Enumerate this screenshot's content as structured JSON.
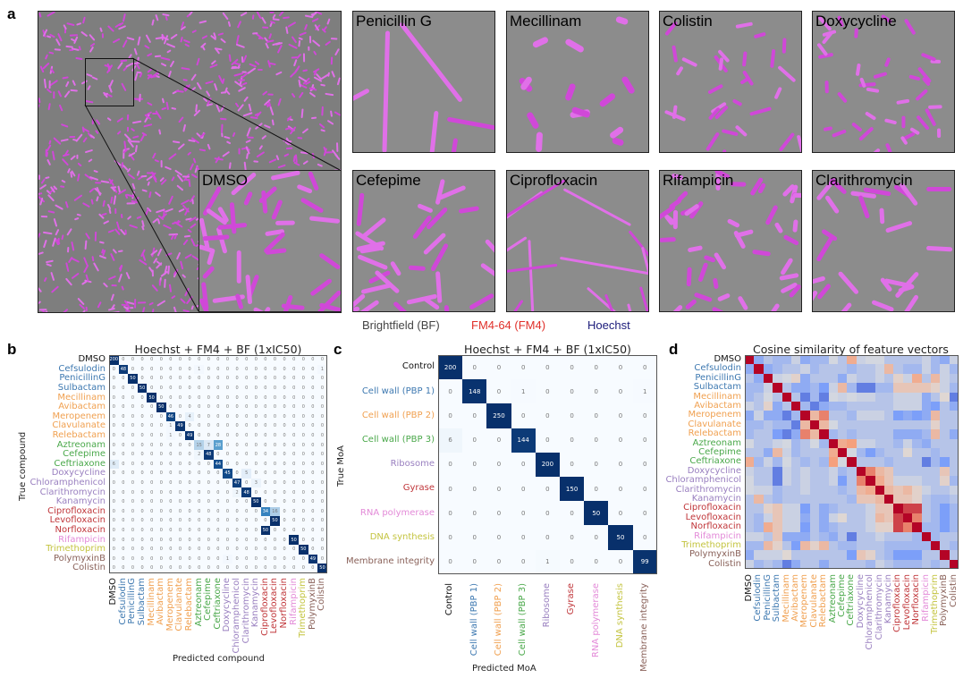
{
  "panel_a": {
    "letter": "a",
    "inset_label": "DMSO",
    "tiles": [
      "Penicillin G",
      "Mecillinam",
      "Colistin",
      "Doxycycline",
      "Cefepime",
      "Ciprofloxacin",
      "Rifampicin",
      "Clarithromycin"
    ],
    "legend": [
      {
        "label": "Brightfield (BF)",
        "color": "#444444"
      },
      {
        "label": "FM4-64 (FM4)",
        "color": "#e0302a"
      },
      {
        "label": "Hoechst",
        "color": "#1a1a7a"
      }
    ]
  },
  "compounds": [
    {
      "name": "DMSO",
      "color": "#111111"
    },
    {
      "name": "Cefsulodin",
      "color": "#3d78b0"
    },
    {
      "name": "PenicillinG",
      "color": "#3d78b0"
    },
    {
      "name": "Sulbactam",
      "color": "#3d78b0"
    },
    {
      "name": "Mecillinam",
      "color": "#f0a050"
    },
    {
      "name": "Avibactam",
      "color": "#f0a050"
    },
    {
      "name": "Meropenem",
      "color": "#f0a050"
    },
    {
      "name": "Clavulanate",
      "color": "#f0a050"
    },
    {
      "name": "Relebactam",
      "color": "#f0a050"
    },
    {
      "name": "Aztreonam",
      "color": "#4aa84a"
    },
    {
      "name": "Cefepime",
      "color": "#4aa84a"
    },
    {
      "name": "Ceftriaxone",
      "color": "#4aa84a"
    },
    {
      "name": "Doxycycline",
      "color": "#9a80c0"
    },
    {
      "name": "Chloramphenicol",
      "color": "#9a80c0"
    },
    {
      "name": "Clarithromycin",
      "color": "#9a80c0"
    },
    {
      "name": "Kanamycin",
      "color": "#9a80c0"
    },
    {
      "name": "Ciprofloxacin",
      "color": "#c0363a"
    },
    {
      "name": "Levofloxacin",
      "color": "#c0363a"
    },
    {
      "name": "Norfloxacin",
      "color": "#c0363a"
    },
    {
      "name": "Rifampicin",
      "color": "#e38ad8"
    },
    {
      "name": "Trimethoprim",
      "color": "#c4c440"
    },
    {
      "name": "PolymyxinB",
      "color": "#8a625a"
    },
    {
      "name": "Colistin",
      "color": "#8a625a"
    }
  ],
  "chart_data": [
    {
      "panel": "b",
      "type": "heatmap",
      "title": "Hoechst + FM4 + BF (1xIC50)",
      "xlabel": "Predicted compound",
      "ylabel": "True compound",
      "colormap": "Blues",
      "matrix": [
        [
          200,
          0,
          0,
          0,
          0,
          0,
          0,
          0,
          0,
          0,
          0,
          0,
          0,
          0,
          0,
          0,
          0,
          0,
          0,
          0,
          0,
          0,
          0
        ],
        [
          0,
          48,
          0,
          0,
          0,
          0,
          0,
          0,
          0,
          1,
          0,
          0,
          0,
          0,
          0,
          0,
          0,
          0,
          0,
          0,
          0,
          0,
          1
        ],
        [
          0,
          0,
          50,
          0,
          0,
          0,
          0,
          0,
          0,
          0,
          0,
          0,
          0,
          0,
          0,
          0,
          0,
          0,
          0,
          0,
          0,
          0,
          0
        ],
        [
          0,
          0,
          0,
          50,
          0,
          0,
          0,
          0,
          0,
          0,
          0,
          0,
          0,
          0,
          0,
          0,
          0,
          0,
          0,
          0,
          0,
          0,
          0
        ],
        [
          0,
          0,
          0,
          0,
          50,
          0,
          0,
          0,
          0,
          0,
          0,
          0,
          0,
          0,
          0,
          0,
          0,
          0,
          0,
          0,
          0,
          0,
          0
        ],
        [
          0,
          0,
          0,
          0,
          0,
          50,
          0,
          0,
          0,
          0,
          0,
          0,
          0,
          0,
          0,
          0,
          0,
          0,
          0,
          0,
          0,
          0,
          0
        ],
        [
          0,
          0,
          0,
          0,
          0,
          0,
          46,
          0,
          4,
          0,
          0,
          0,
          0,
          0,
          0,
          0,
          0,
          0,
          0,
          0,
          0,
          0,
          0
        ],
        [
          0,
          0,
          0,
          0,
          0,
          0,
          1,
          49,
          0,
          0,
          0,
          0,
          0,
          0,
          0,
          0,
          0,
          0,
          0,
          0,
          0,
          0,
          0
        ],
        [
          0,
          0,
          0,
          0,
          0,
          0,
          1,
          0,
          49,
          0,
          0,
          0,
          0,
          0,
          0,
          0,
          0,
          0,
          0,
          0,
          0,
          0,
          0
        ],
        [
          0,
          0,
          0,
          0,
          0,
          0,
          0,
          0,
          0,
          15,
          7,
          28,
          0,
          0,
          0,
          0,
          0,
          0,
          0,
          0,
          0,
          0,
          0
        ],
        [
          0,
          0,
          0,
          0,
          0,
          0,
          0,
          0,
          0,
          2,
          48,
          0,
          0,
          0,
          0,
          0,
          0,
          0,
          0,
          0,
          0,
          0,
          0
        ],
        [
          6,
          0,
          0,
          0,
          0,
          0,
          0,
          0,
          0,
          0,
          0,
          44,
          0,
          0,
          0,
          0,
          0,
          0,
          0,
          0,
          0,
          0,
          0
        ],
        [
          0,
          0,
          0,
          0,
          0,
          0,
          0,
          0,
          0,
          0,
          0,
          0,
          45,
          0,
          5,
          0,
          0,
          0,
          0,
          0,
          0,
          0,
          0
        ],
        [
          0,
          0,
          0,
          0,
          0,
          0,
          0,
          0,
          0,
          0,
          0,
          0,
          0,
          47,
          0,
          3,
          0,
          0,
          0,
          0,
          0,
          0,
          0
        ],
        [
          0,
          0,
          0,
          0,
          0,
          0,
          0,
          0,
          0,
          0,
          0,
          0,
          0,
          2,
          48,
          0,
          0,
          0,
          0,
          0,
          0,
          0,
          0
        ],
        [
          0,
          0,
          0,
          0,
          0,
          0,
          0,
          0,
          0,
          0,
          0,
          0,
          0,
          0,
          0,
          50,
          0,
          0,
          0,
          0,
          0,
          0,
          0
        ],
        [
          0,
          0,
          0,
          0,
          0,
          0,
          0,
          0,
          0,
          0,
          0,
          0,
          0,
          0,
          0,
          0,
          34,
          16,
          0,
          0,
          0,
          0,
          0
        ],
        [
          0,
          0,
          0,
          0,
          0,
          0,
          0,
          0,
          0,
          0,
          0,
          0,
          0,
          0,
          0,
          0,
          0,
          50,
          0,
          0,
          0,
          0,
          0
        ],
        [
          0,
          0,
          0,
          0,
          0,
          0,
          0,
          0,
          0,
          0,
          0,
          0,
          0,
          0,
          0,
          0,
          50,
          0,
          0,
          0,
          0,
          0,
          0
        ],
        [
          0,
          0,
          0,
          0,
          0,
          0,
          0,
          0,
          0,
          0,
          0,
          0,
          0,
          0,
          0,
          0,
          0,
          0,
          0,
          50,
          0,
          0,
          0
        ],
        [
          0,
          0,
          0,
          0,
          0,
          0,
          0,
          0,
          0,
          0,
          0,
          0,
          0,
          0,
          0,
          0,
          0,
          0,
          0,
          0,
          50,
          0,
          0
        ],
        [
          0,
          0,
          0,
          0,
          0,
          0,
          0,
          0,
          0,
          0,
          0,
          0,
          1,
          0,
          0,
          0,
          0,
          0,
          0,
          0,
          0,
          49,
          0
        ],
        [
          0,
          0,
          0,
          0,
          0,
          0,
          0,
          0,
          0,
          0,
          0,
          0,
          0,
          0,
          0,
          0,
          0,
          0,
          0,
          0,
          0,
          0,
          50
        ]
      ]
    },
    {
      "panel": "c",
      "type": "heatmap",
      "title": "Hoechst + FM4 + BF (1xIC50)",
      "xlabel": "Predicted MoA",
      "ylabel": "True MoA",
      "colormap": "Blues",
      "categories": [
        {
          "name": "Control",
          "color": "#111111"
        },
        {
          "name": "Cell wall (PBP 1)",
          "color": "#3d78b0"
        },
        {
          "name": "Cell wall (PBP 2)",
          "color": "#f0a050"
        },
        {
          "name": "Cell wall (PBP 3)",
          "color": "#4aa84a"
        },
        {
          "name": "Ribosome",
          "color": "#9a80c0"
        },
        {
          "name": "Gyrase",
          "color": "#c0363a"
        },
        {
          "name": "RNA polymerase",
          "color": "#e38ad8"
        },
        {
          "name": "DNA synthesis",
          "color": "#c4c440"
        },
        {
          "name": "Membrane integrity",
          "color": "#8a625a"
        }
      ],
      "matrix": [
        [
          200,
          0,
          0,
          0,
          0,
          0,
          0,
          0,
          0
        ],
        [
          0,
          148,
          0,
          1,
          0,
          0,
          0,
          0,
          1
        ],
        [
          0,
          0,
          250,
          0,
          0,
          0,
          0,
          0,
          0
        ],
        [
          6,
          0,
          0,
          144,
          0,
          0,
          0,
          0,
          0
        ],
        [
          0,
          0,
          0,
          0,
          200,
          0,
          0,
          0,
          0
        ],
        [
          0,
          0,
          0,
          0,
          0,
          150,
          0,
          0,
          0
        ],
        [
          0,
          0,
          0,
          0,
          0,
          0,
          50,
          0,
          0
        ],
        [
          0,
          0,
          0,
          0,
          0,
          0,
          0,
          50,
          0
        ],
        [
          0,
          0,
          0,
          0,
          1,
          0,
          0,
          0,
          99
        ]
      ]
    },
    {
      "panel": "d",
      "type": "heatmap",
      "title": "Cosine similarity of feature vectors",
      "colormap": "coolwarm",
      "range": [
        -1,
        1
      ],
      "lower_triangle": [
        [
          1
        ],
        [
          -0.4,
          1
        ],
        [
          -0.2,
          -0.4,
          1
        ],
        [
          -0.3,
          -0.3,
          -0.1,
          1
        ],
        [
          -0.3,
          -0.2,
          -0.05,
          -0.2,
          1
        ],
        [
          -0.1,
          -0.2,
          0.1,
          -0.4,
          -0.2,
          1
        ],
        [
          -0.4,
          -0.1,
          -0.4,
          -0.4,
          -0.7,
          -0.3,
          1
        ],
        [
          -0.3,
          -0.3,
          -0.2,
          -0.3,
          -0.3,
          -0.7,
          0.3,
          1
        ],
        [
          -0.3,
          -0.2,
          -0.2,
          -0.5,
          -0.7,
          -0.4,
          0.6,
          0.3,
          1
        ],
        [
          -0.05,
          -0.2,
          -0.2,
          -0.1,
          -0.05,
          -0.3,
          -0.2,
          -0.05,
          -0.3,
          1
        ],
        [
          -0.2,
          -0.2,
          -0.4,
          0.3,
          -0.1,
          -0.3,
          -0.2,
          -0.2,
          -0.2,
          0.4,
          1
        ],
        [
          0.4,
          -0.3,
          -0.1,
          -0.3,
          -0.05,
          -0.2,
          -0.3,
          -0.2,
          -0.3,
          0.5,
          -0.05,
          1
        ],
        [
          -0.1,
          -0.2,
          -0.2,
          -0.7,
          -0.1,
          -0.2,
          -0.1,
          -0.2,
          -0.2,
          -0.1,
          -0.3,
          -0.2,
          1
        ],
        [
          -0.05,
          -0.2,
          -0.2,
          -0.7,
          -0.1,
          -0.2,
          -0.1,
          -0.2,
          -0.2,
          -0.1,
          -0.5,
          -0.2,
          0.6,
          1
        ],
        [
          -0.05,
          -0.1,
          -0.1,
          -0.3,
          -0.2,
          -0.2,
          -0.1,
          -0.2,
          -0.2,
          -0.2,
          -0.3,
          -0.2,
          0.3,
          0.4,
          1
        ],
        [
          -0.2,
          0.3,
          -0.2,
          -0.3,
          -0.2,
          -0.2,
          -0.2,
          -0.2,
          -0.2,
          -0.2,
          -0.2,
          -0.3,
          0.2,
          0.2,
          0.3,
          1
        ],
        [
          -0.2,
          -0.2,
          0.1,
          0.2,
          -0.1,
          -0.1,
          -0.5,
          -0.2,
          -0.4,
          -0.3,
          -0.2,
          -0.2,
          -0.2,
          -0.1,
          0.2,
          0.2,
          1
        ],
        [
          -0.2,
          -0.3,
          -0.1,
          0.2,
          -0.1,
          -0.1,
          -0.4,
          -0.2,
          -0.4,
          -0.1,
          0.05,
          -0.2,
          -0.2,
          -0.1,
          0.3,
          0.2,
          0.8,
          1
        ],
        [
          -0.2,
          -0.3,
          0.4,
          0.2,
          -0.1,
          -0.1,
          -0.5,
          -0.2,
          -0.4,
          -0.3,
          -0.2,
          -0.2,
          -0.2,
          -0.1,
          0.1,
          0.1,
          0.8,
          0.6,
          1
        ],
        [
          -0.1,
          -0.1,
          -0.2,
          0.2,
          -0.4,
          -0.4,
          -0.4,
          -0.2,
          -0.3,
          -0.4,
          -0.2,
          -0.7,
          -0.2,
          -0.2,
          -0.1,
          -0.2,
          -0.2,
          -0.2,
          -0.3,
          1
        ],
        [
          -0.3,
          -0.3,
          0.3,
          0.1,
          -0.2,
          -0.5,
          0.3,
          0.1,
          0.3,
          -0.2,
          -0.3,
          -0.3,
          -0.2,
          -0.2,
          -0.2,
          -0.3,
          -0.3,
          -0.3,
          -0.3,
          -0.3,
          1
        ],
        [
          -0.4,
          -0.1,
          -0.1,
          -0.1,
          0.05,
          -0.2,
          -0.2,
          -0.2,
          -0.2,
          -0.2,
          -0.2,
          -0.5,
          0.2,
          0.1,
          -0.2,
          -0.3,
          -0.5,
          -0.5,
          -0.5,
          -0.2,
          -0.2,
          1
        ],
        [
          -0.1,
          -0.3,
          -0.2,
          -0.3,
          -0.7,
          -0.4,
          -0.2,
          -0.2,
          -0.4,
          -0.2,
          -0.2,
          -0.2,
          -0.2,
          -0.3,
          -0.1,
          -0.2,
          -0.3,
          -0.3,
          -0.3,
          -0.2,
          -0.3,
          -0.2,
          1
        ]
      ]
    }
  ]
}
